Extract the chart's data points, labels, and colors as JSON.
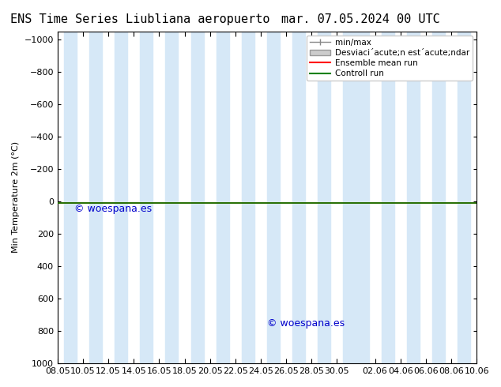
{
  "title_left": "ENS Time Series Liubliana aeropuerto",
  "title_right": "mar. 07.05.2024 00 UTC",
  "ylabel": "Min Temperature 2m (°C)",
  "ylim": [
    1000,
    -1050
  ],
  "yticks": [
    1000,
    800,
    600,
    400,
    200,
    0,
    -200,
    -400,
    -600,
    -800,
    -1000
  ],
  "xlim_start": 0,
  "xlim_end": 33,
  "xtick_labels": [
    "08.05",
    "10.05",
    "12.05",
    "14.05",
    "16.05",
    "18.05",
    "20.05",
    "22.05",
    "24.05",
    "26.05",
    "28.05",
    "30.05",
    "02.06",
    "04.06",
    "06.06",
    "08.06",
    "10.06"
  ],
  "xtick_positions": [
    0,
    2,
    4,
    6,
    8,
    10,
    12,
    14,
    16,
    18,
    20,
    22,
    25,
    27,
    29,
    31,
    33
  ],
  "shaded_columns": [
    1,
    3,
    5,
    7,
    9,
    11,
    13,
    15,
    17,
    19,
    21,
    23,
    24,
    26,
    28,
    30,
    32
  ],
  "shaded_color": "#d6e8f7",
  "green_line_y": 10,
  "red_line_y": 10,
  "watermark": "© woespana.es",
  "watermark_color": "#0000cc",
  "legend_entries": [
    "min/max",
    "Desviaci´acute;n est´acute;ndar",
    "Ensemble mean run",
    "Controll run"
  ],
  "legend_colors": [
    "#aaaaaa",
    "#cccccc",
    "#ff0000",
    "#008000"
  ],
  "background_color": "#ffffff",
  "plot_bg_color": "#ffffff",
  "border_color": "#000000",
  "title_fontsize": 11,
  "axis_fontsize": 8,
  "tick_fontsize": 8
}
